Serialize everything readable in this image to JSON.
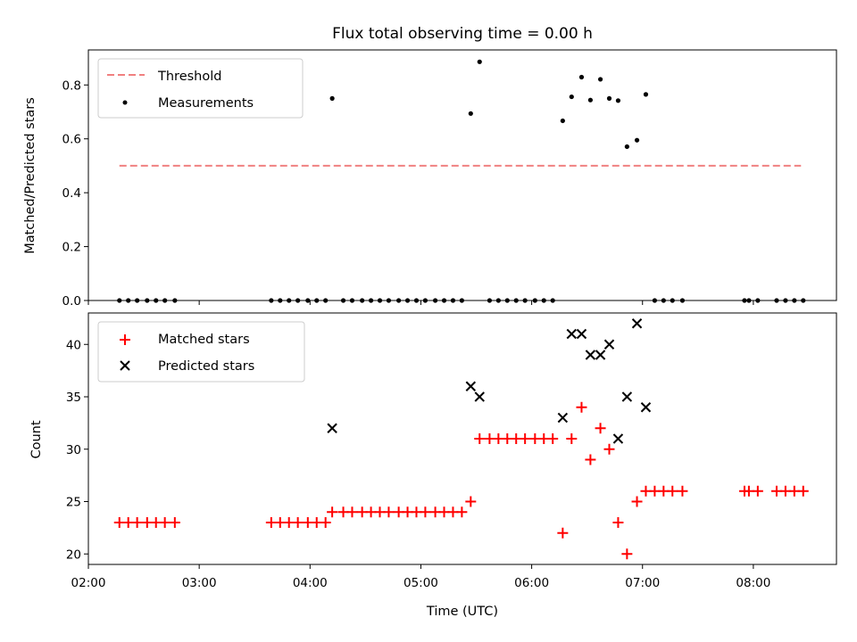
{
  "chart_data": [
    {
      "type": "scatter",
      "title": "Flux total observing time = 0.00 h",
      "xlabel": "",
      "ylabel": "Matched/Predicted stars",
      "xlim": [
        2.0,
        8.75
      ],
      "ylim": [
        0.0,
        0.93
      ],
      "yticks": [
        0.0,
        0.2,
        0.4,
        0.6,
        0.8
      ],
      "ytick_labels": [
        "0.0",
        "0.2",
        "0.4",
        "0.6",
        "0.8"
      ],
      "xticks": [
        2,
        3,
        4,
        5,
        6,
        7,
        8
      ],
      "threshold": {
        "name": "Threshold",
        "value": 0.5,
        "x_range": [
          2.28,
          8.43
        ],
        "color": "#f08080"
      },
      "legend": [
        "Threshold",
        "Measurements"
      ],
      "legend_loc": "upper left",
      "series": [
        {
          "name": "Measurements",
          "color": "#000000",
          "x": [
            2.28,
            2.36,
            2.44,
            2.53,
            2.61,
            2.69,
            2.78,
            3.65,
            3.73,
            3.81,
            3.89,
            3.98,
            4.06,
            4.14,
            4.2,
            4.3,
            4.38,
            4.47,
            4.55,
            4.63,
            4.71,
            4.8,
            4.88,
            4.96,
            5.04,
            5.13,
            5.21,
            5.29,
            5.37,
            5.45,
            5.53,
            5.62,
            5.7,
            5.78,
            5.86,
            5.94,
            6.03,
            6.11,
            6.19,
            6.28,
            6.36,
            6.45,
            6.53,
            6.62,
            6.7,
            6.78,
            6.86,
            6.95,
            7.03,
            7.11,
            7.19,
            7.27,
            7.36,
            7.92,
            7.96,
            8.04,
            8.21,
            8.29,
            8.37,
            8.45
          ],
          "y": [
            0,
            0,
            0,
            0,
            0,
            0,
            0,
            0,
            0,
            0,
            0,
            0,
            0,
            0,
            0.75,
            0,
            0,
            0,
            0,
            0,
            0,
            0,
            0,
            0,
            0,
            0,
            0,
            0,
            0,
            0.694,
            0.886,
            0,
            0,
            0,
            0,
            0,
            0,
            0,
            0,
            0.667,
            0.756,
            0.829,
            0.744,
            0.821,
            0.75,
            0.742,
            0.571,
            0.595,
            0.765,
            0,
            0,
            0,
            0,
            0,
            0,
            0,
            0,
            0,
            0,
            0
          ]
        }
      ]
    },
    {
      "type": "scatter",
      "title": "",
      "xlabel": "Time (UTC)",
      "ylabel": "Count",
      "xlim": [
        2.0,
        8.75
      ],
      "ylim": [
        19,
        43
      ],
      "yticks": [
        20,
        25,
        30,
        35,
        40
      ],
      "ytick_labels": [
        "20",
        "25",
        "30",
        "35",
        "40"
      ],
      "xticks": [
        2,
        3,
        4,
        5,
        6,
        7,
        8
      ],
      "xtick_labels": [
        "02:00",
        "03:00",
        "04:00",
        "05:00",
        "06:00",
        "07:00",
        "08:00"
      ],
      "legend": [
        "Matched stars",
        "Predicted stars"
      ],
      "legend_loc": "upper left",
      "series": [
        {
          "name": "Matched stars",
          "marker": "plus",
          "color": "#ff0000",
          "x": [
            2.28,
            2.36,
            2.44,
            2.53,
            2.61,
            2.69,
            2.78,
            3.65,
            3.73,
            3.81,
            3.89,
            3.98,
            4.06,
            4.14,
            4.2,
            4.3,
            4.38,
            4.47,
            4.55,
            4.63,
            4.71,
            4.8,
            4.88,
            4.96,
            5.04,
            5.13,
            5.21,
            5.29,
            5.37,
            5.45,
            5.53,
            5.62,
            5.7,
            5.78,
            5.86,
            5.94,
            6.03,
            6.11,
            6.19,
            6.28,
            6.36,
            6.45,
            6.53,
            6.62,
            6.7,
            6.78,
            6.86,
            6.95,
            7.03,
            7.11,
            7.19,
            7.27,
            7.36,
            7.92,
            7.96,
            8.04,
            8.21,
            8.29,
            8.37,
            8.45
          ],
          "y": [
            23,
            23,
            23,
            23,
            23,
            23,
            23,
            23,
            23,
            23,
            23,
            23,
            23,
            23,
            24,
            24,
            24,
            24,
            24,
            24,
            24,
            24,
            24,
            24,
            24,
            24,
            24,
            24,
            24,
            25,
            31,
            31,
            31,
            31,
            31,
            31,
            31,
            31,
            31,
            22,
            31,
            34,
            29,
            32,
            30,
            23,
            20,
            25,
            26,
            26,
            26,
            26,
            26,
            26,
            26,
            26,
            26,
            26,
            26,
            26
          ]
        },
        {
          "name": "Predicted stars",
          "marker": "x",
          "color": "#000000",
          "x": [
            4.2,
            5.45,
            5.53,
            6.28,
            6.36,
            6.45,
            6.53,
            6.62,
            6.7,
            6.78,
            6.86,
            6.95,
            7.03
          ],
          "y": [
            32,
            36,
            35,
            33,
            41,
            41,
            39,
            39,
            40,
            31,
            35,
            42,
            34
          ]
        }
      ]
    }
  ]
}
